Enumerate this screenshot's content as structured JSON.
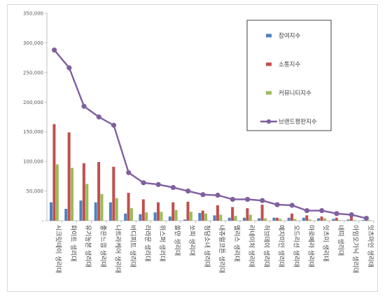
{
  "chart_data": {
    "type": "bar",
    "title": "",
    "xlabel": "",
    "ylabel": "",
    "ylim": [
      0,
      350000
    ],
    "yticks": [
      "-",
      "50,000",
      "100,000",
      "150,000",
      "200,000",
      "250,000",
      "300,000",
      "350,000"
    ],
    "grid": false,
    "legend_position": "top-right",
    "categories": [
      "시크릿데이 생리대",
      "화이트 생리대",
      "유기농본 생리대",
      "좋은느낌 생리대",
      "나트라케어 생리대",
      "바디피트 생리대",
      "라라문 생리대",
      "위스퍼 생리대",
      "쏠만 생리대",
      "쏘피 생리대",
      "청담소녀 생리대",
      "내츄럴코튼 생리대",
      "엘리스 생리대",
      "라네이처 생리대",
      "허브데이 생리대",
      "예지미인 생리대",
      "오드리선 생리대",
      "마로메라 생리대",
      "잇츠미 생리대",
      "네띠 생리대",
      "아임오가닉 생리대",
      "잇츠마인 생리대"
    ],
    "series": [
      {
        "name": "참여지수",
        "color": "#4f81bd",
        "values": [
          31000,
          20000,
          34000,
          31000,
          31000,
          12000,
          11000,
          14000,
          7000,
          2000,
          13000,
          9000,
          5000,
          5000,
          4000,
          5000,
          5000,
          5000,
          4000,
          3000,
          2000,
          1000
        ]
      },
      {
        "name": "소통지수",
        "color": "#c0504d",
        "values": [
          163000,
          149000,
          97000,
          99000,
          91000,
          47000,
          36000,
          31000,
          31000,
          32000,
          17000,
          26000,
          23000,
          21000,
          27000,
          5000,
          12000,
          9000,
          7000,
          5000,
          8000,
          2000
        ]
      },
      {
        "name": "커뮤니티지수",
        "color": "#9bbb59",
        "values": [
          95000,
          89000,
          62000,
          45000,
          38000,
          21000,
          14000,
          15000,
          18000,
          15000,
          12000,
          10000,
          8000,
          10000,
          4000,
          3000,
          3000,
          2000,
          4000,
          1000,
          1000,
          1000
        ]
      },
      {
        "name": "브랜드평판지수",
        "color": "#7f5fa0",
        "type": "line",
        "values": [
          288000,
          258000,
          193000,
          175000,
          161000,
          81000,
          64000,
          61000,
          56000,
          50000,
          44000,
          43000,
          36000,
          36000,
          34000,
          27000,
          26000,
          17000,
          17000,
          12000,
          10000,
          4000
        ]
      }
    ]
  }
}
